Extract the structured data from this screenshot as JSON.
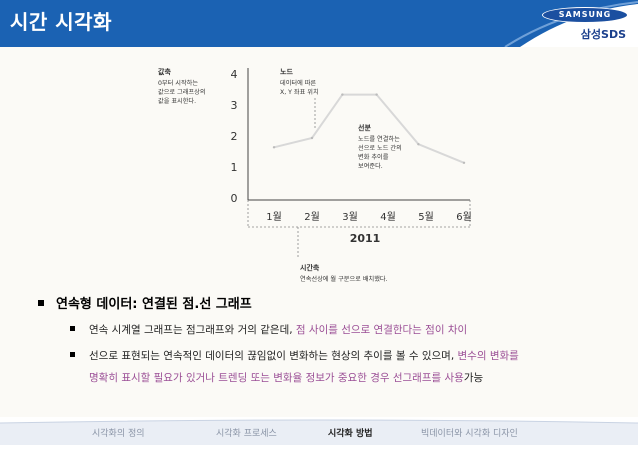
{
  "header": {
    "title": "시간 시각화",
    "logo_text": "SAMSUNG",
    "logo_sub": "삼성SDS"
  },
  "figure": {
    "y_axis_note_title": "값축",
    "y_axis_note_lines": [
      "0부터 시작하는",
      "값으로 그래프상의",
      "값을 표시한다."
    ],
    "node_note_title": "노드",
    "node_note_lines": [
      "데이터에 따른",
      "X, Y 좌표 위치"
    ],
    "line_note_title": "선분",
    "line_note_lines": [
      "노드를 연결하는",
      "선으로 노드 간의",
      "변화 추이를",
      "보여준다."
    ],
    "time_axis_title": "시간축",
    "time_axis_desc": "연속선상에 월 구분으로 배치했다.",
    "year_label": "2011"
  },
  "chart_data": {
    "type": "line",
    "x": [
      "1월",
      "2월",
      "3월",
      "4월",
      "5월",
      "6월"
    ],
    "y_ticks": [
      "0",
      "1",
      "2",
      "3",
      "4"
    ],
    "ylim": [
      0,
      4
    ],
    "points": [
      [
        1,
        1.7
      ],
      [
        2,
        2.0
      ],
      [
        2.8,
        3.4
      ],
      [
        3.7,
        3.4
      ],
      [
        4.8,
        1.8
      ],
      [
        6,
        1.2
      ]
    ],
    "color": "#d8d8d8"
  },
  "bullets": {
    "main": "연속형 데이터: 연결된 점.선 그래프",
    "item1_plain": "연속 시계열 그래프는 점그래프와 거의 같은데, ",
    "item1_highlight": "점 사이를 선으로 연결한다는 점이 차이",
    "item2_line1_plain": "선으로 표현되는 연속적인 데이터의 끊임없이 변화하는 현상의 추이를 볼 수 있으며, ",
    "item2_line1_highlight": "변수의 변화를",
    "item2_line2_highlight": "명확히 표시할 필요가 있거나 트렌딩 또는 변화율 정보가 중요한 경우 선그래프를 사용",
    "item2_line2_plain": "가능"
  },
  "footer": {
    "nav": [
      "시각화의 정의",
      "시각화 프로세스",
      "시각화 방법",
      "빅데이터와 시각화 디자인"
    ],
    "active_index": 2
  },
  "colors": {
    "header_blue": "#1b62b3",
    "highlight_purple": "#9b4f96",
    "footer_bar": "#e8edf5"
  }
}
